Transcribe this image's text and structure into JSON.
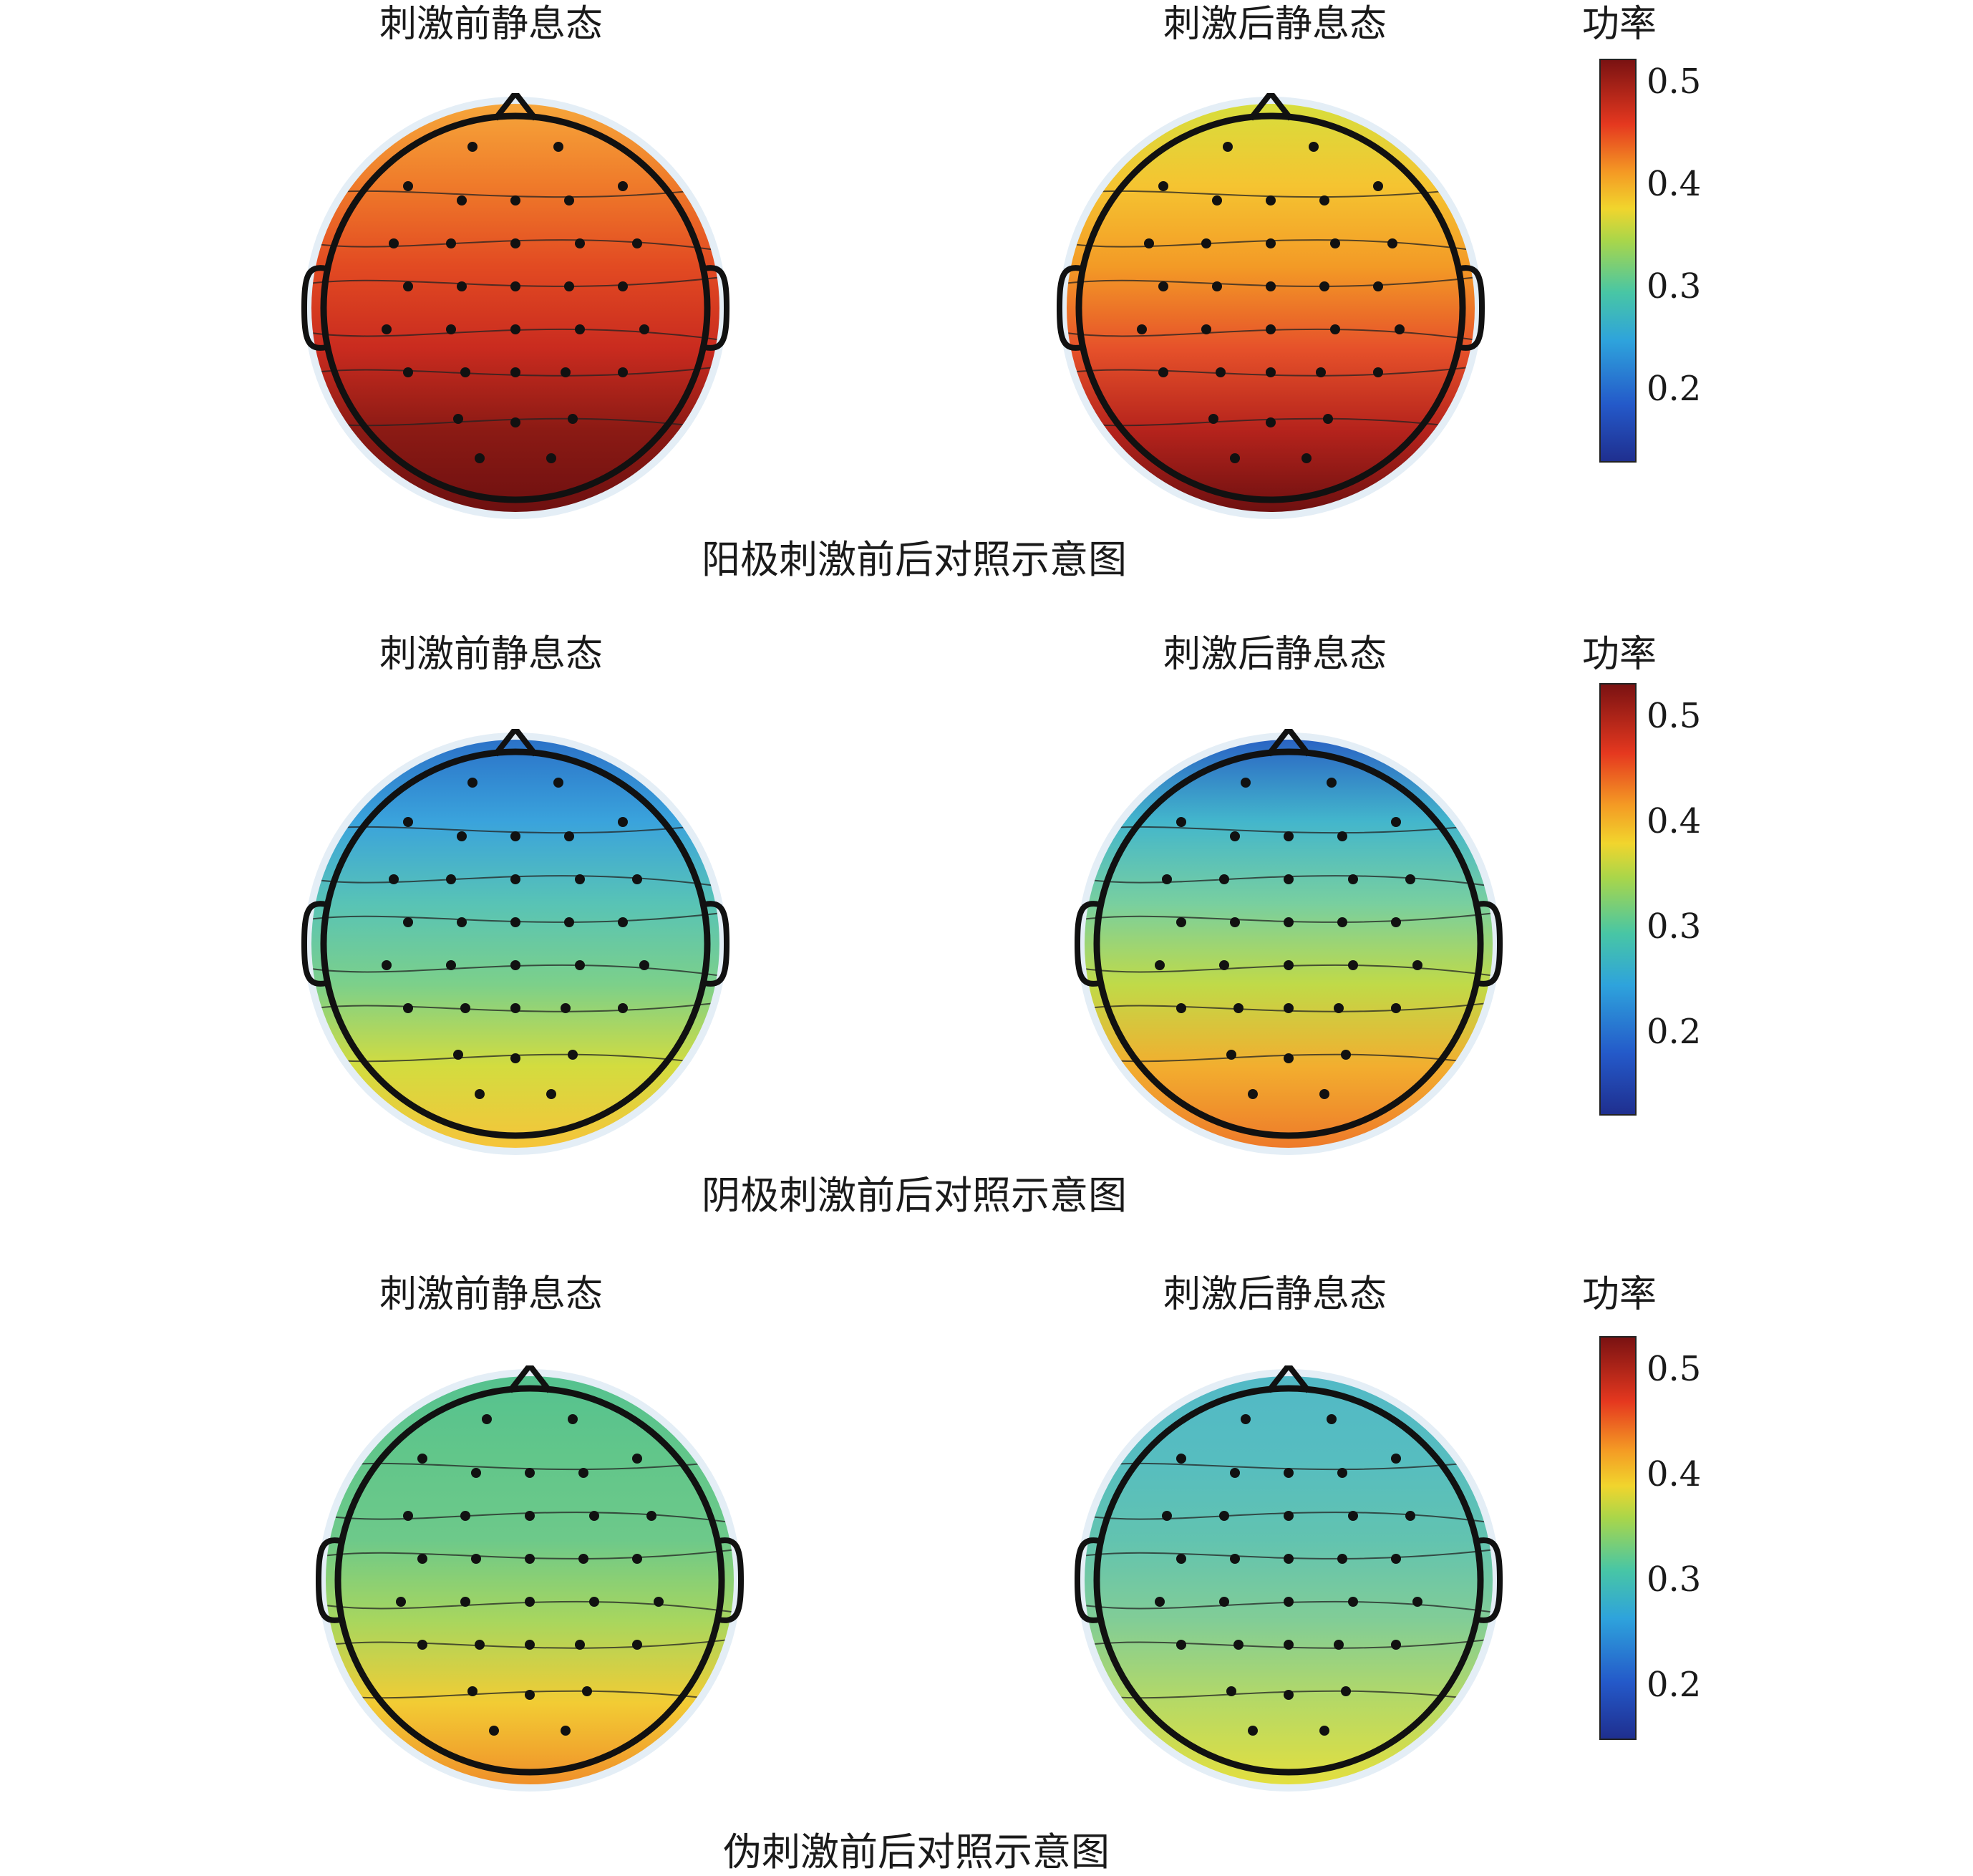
{
  "labels": {
    "before": "刺激前静息态",
    "after": "刺激后静息态",
    "power": "功率"
  },
  "captions": [
    "阳极刺激前后对照示意图",
    "阴极刺激前后对照示意图",
    "伪刺激前后对照示意图"
  ],
  "colorbar": {
    "ticks": [
      "0.5",
      "0.4",
      "0.3",
      "0.2"
    ],
    "colors": [
      "#1f2f8f",
      "#2459c9",
      "#2ea3dc",
      "#48c6a5",
      "#a9d64a",
      "#f1d52d",
      "#f49a24",
      "#e5381f",
      "#7a1212"
    ]
  },
  "maps": [
    {
      "key": "anode-before",
      "stops": [
        "#f6a63a",
        "#ef7a2a",
        "#e24a22",
        "#c92b1f",
        "#8b1a14",
        "#6e1010"
      ]
    },
    {
      "key": "anode-after",
      "stops": [
        "#d7de3c",
        "#f5c431",
        "#f39a26",
        "#e6512a",
        "#b5231c",
        "#6e1010"
      ]
    },
    {
      "key": "cathode-before",
      "stops": [
        "#2b72c8",
        "#3aa3dc",
        "#58c3b6",
        "#7cd08a",
        "#d3dc3f",
        "#f6c43a"
      ]
    },
    {
      "key": "cathode-after",
      "stops": [
        "#2a64c4",
        "#43b6cc",
        "#78cfa0",
        "#c0da48",
        "#f2ae2f",
        "#ee7a2a"
      ]
    },
    {
      "key": "sham-before",
      "stops": [
        "#55c28f",
        "#62c68a",
        "#6dc98a",
        "#a8d65e",
        "#f2cc34",
        "#f0902a"
      ]
    },
    {
      "key": "sham-after",
      "stops": [
        "#52b9c6",
        "#56bdc0",
        "#62c3b0",
        "#82cd96",
        "#b6d965",
        "#e3df3f"
      ]
    }
  ]
}
